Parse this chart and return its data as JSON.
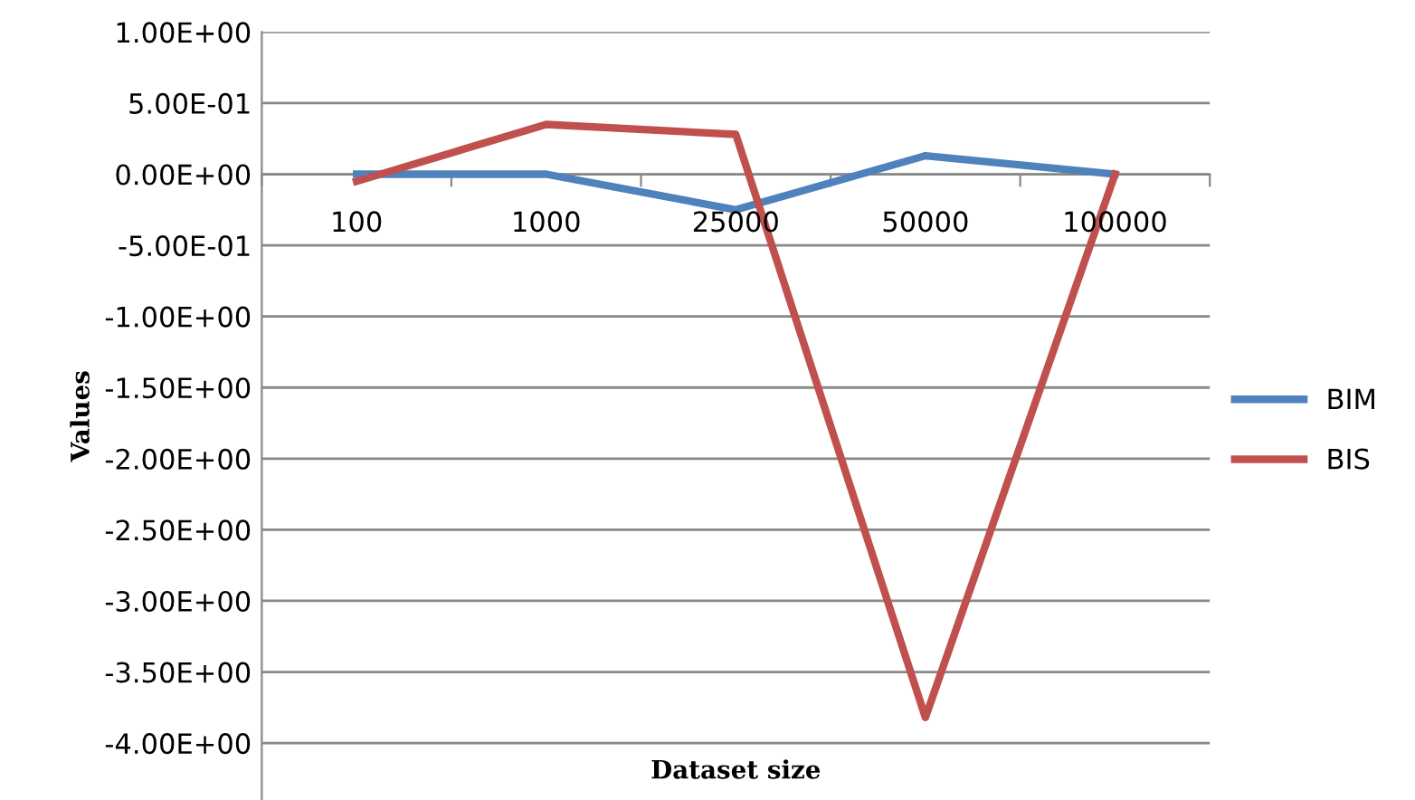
{
  "chart_data": {
    "type": "line",
    "xlabel": "Dataset size",
    "ylabel": "Values",
    "categories": [
      "100",
      "1000",
      "25000",
      "50000",
      "100000"
    ],
    "series": [
      {
        "name": "BIM",
        "color": "#4f81bd",
        "values": [
          0,
          0,
          -0.25,
          0.13,
          0
        ]
      },
      {
        "name": "BIS",
        "color": "#c0504d",
        "values": [
          -0.05,
          0.35,
          0.28,
          -3.82,
          0
        ]
      }
    ],
    "ylim": [
      -4.4,
      1.0
    ],
    "yticks": [
      {
        "value": 1,
        "label": "1.00E+00"
      },
      {
        "value": 0.5,
        "label": "5.00E-01"
      },
      {
        "value": 0,
        "label": "0.00E+00"
      },
      {
        "value": -0.5,
        "label": "-5.00E-01"
      },
      {
        "value": -1,
        "label": "-1.00E+00"
      },
      {
        "value": -1.5,
        "label": "-1.50E+00"
      },
      {
        "value": -2,
        "label": "-2.00E+00"
      },
      {
        "value": -2.5,
        "label": "-2.50E+00"
      },
      {
        "value": -3,
        "label": "-3.00E+00"
      },
      {
        "value": -3.5,
        "label": "-3.50E+00"
      },
      {
        "value": -4,
        "label": "-4.00E+00"
      }
    ],
    "grid": "y",
    "legend": "right",
    "marker": "none",
    "line_style": "solid"
  }
}
